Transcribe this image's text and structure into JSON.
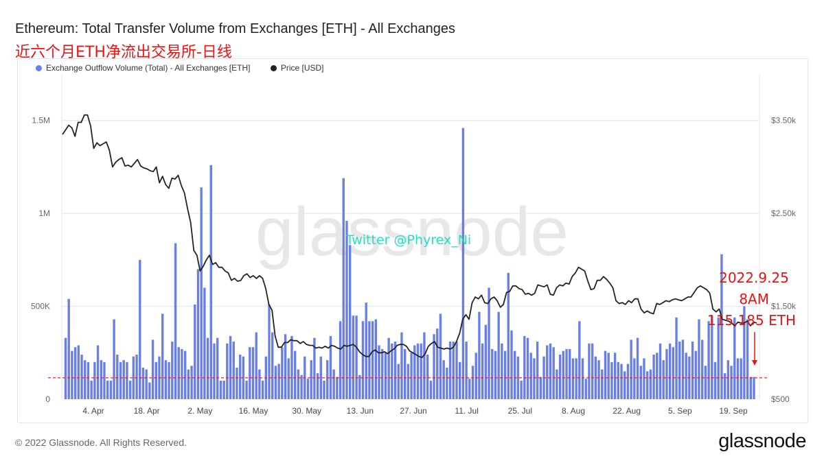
{
  "header": {
    "title": "Ethereum: Total Transfer Volume from Exchanges [ETH] - All Exchanges",
    "subtitle": "近六个月ETH净流出交易所-日线"
  },
  "footer": {
    "copyright": "© 2022 Glassnode. All Rights Reserved.",
    "logo": "glassnode"
  },
  "watermark": {
    "brand": "glassnode",
    "credit": "Twitter @Phyrex_Ni"
  },
  "annotation": {
    "lines": [
      "2022.9.25",
      "8AM",
      "115,185 ETH"
    ],
    "color": "#ee1111"
  },
  "chart_data": {
    "type": "bar",
    "grid": true,
    "legend_position": "top-left",
    "x_ticks": [
      "4. Apr",
      "18. Apr",
      "2. May",
      "16. May",
      "30. May",
      "13. Jun",
      "27. Jun",
      "11. Jul",
      "25. Jul",
      "8. Aug",
      "22. Aug",
      "5. Sep",
      "19. Sep"
    ],
    "y_left": {
      "ticks": [
        "0",
        "500K",
        "1M",
        "1.5M"
      ],
      "lim": [
        0,
        1750000
      ]
    },
    "y_right": {
      "ticks": [
        "$500",
        "$1.50k",
        "$2.50k",
        "$3.50k"
      ],
      "lim": [
        500,
        4000
      ]
    },
    "reference_line": {
      "value": 115185,
      "color": "#ee1111",
      "style": "dashed"
    },
    "series": [
      {
        "name": "Exchange Outflow Volume (Total) - All Exchanges [ETH]",
        "type": "bar",
        "axis": "left",
        "color": "#6a7fe3",
        "values": [
          330000,
          540000,
          260000,
          280000,
          290000,
          240000,
          210000,
          200000,
          100000,
          200000,
          290000,
          210000,
          200000,
          100000,
          100000,
          430000,
          240000,
          200000,
          210000,
          200000,
          100000,
          230000,
          240000,
          750000,
          170000,
          160000,
          90000,
          320000,
          200000,
          230000,
          460000,
          210000,
          200000,
          310000,
          840000,
          280000,
          270000,
          260000,
          160000,
          180000,
          510000,
          700000,
          1140000,
          600000,
          330000,
          1260000,
          300000,
          330000,
          100000,
          100000,
          300000,
          340000,
          310000,
          170000,
          240000,
          230000,
          100000,
          280000,
          280000,
          360000,
          160000,
          100000,
          230000,
          510000,
          360000,
          180000,
          190000,
          280000,
          350000,
          220000,
          340000,
          260000,
          160000,
          130000,
          230000,
          110000,
          210000,
          330000,
          140000,
          230000,
          100000,
          210000,
          340000,
          160000,
          120000,
          420000,
          1190000,
          960000,
          830000,
          450000,
          450000,
          130000,
          420000,
          520000,
          420000,
          420000,
          430000,
          290000,
          270000,
          250000,
          330000,
          300000,
          310000,
          190000,
          360000,
          270000,
          190000,
          250000,
          290000,
          300000,
          300000,
          360000,
          240000,
          100000,
          350000,
          380000,
          460000,
          210000,
          170000,
          310000,
          310000,
          310000,
          200000,
          1460000,
          310000,
          110000,
          180000,
          250000,
          470000,
          300000,
          400000,
          600000,
          270000,
          260000,
          470000,
          300000,
          260000,
          680000,
          370000,
          260000,
          230000,
          100000,
          340000,
          330000,
          250000,
          220000,
          310000,
          120000,
          230000,
          290000,
          300000,
          280000,
          160000,
          240000,
          260000,
          270000,
          270000,
          220000,
          220000,
          420000,
          220000,
          110000,
          300000,
          300000,
          230000,
          210000,
          160000,
          260000,
          250000,
          200000,
          250000,
          200000,
          190000,
          150000,
          190000,
          320000,
          220000,
          330000,
          180000,
          220000,
          150000,
          160000,
          240000,
          250000,
          300000,
          210000,
          270000,
          300000,
          280000,
          440000,
          310000,
          320000,
          250000,
          230000,
          310000,
          260000,
          430000,
          320000,
          180000,
          420000,
          450000,
          200000,
          440000,
          780000,
          140000,
          210000,
          180000,
          440000,
          220000,
          220000,
          500000,
          430000,
          120000,
          120000
        ]
      },
      {
        "name": "Price [USD]",
        "type": "line",
        "axis": "right",
        "color": "#222222",
        "values": [
          3350,
          3400,
          3450,
          3420,
          3330,
          3480,
          3480,
          3560,
          3560,
          3440,
          3200,
          3260,
          3230,
          3250,
          3270,
          3180,
          3000,
          3050,
          3080,
          3100,
          3010,
          3020,
          3000,
          3040,
          3080,
          3010,
          2990,
          2980,
          2960,
          2950,
          3000,
          2830,
          2900,
          2810,
          2770,
          2880,
          2870,
          2910,
          2800,
          2720,
          2550,
          2400,
          2100,
          2050,
          1880,
          1930,
          2000,
          2050,
          1950,
          1970,
          1920,
          1920,
          1880,
          1860,
          1780,
          1800,
          1770,
          1780,
          1830,
          1850,
          1810,
          1830,
          1800,
          1830,
          1800,
          1690,
          1520,
          1460,
          1180,
          1060,
          1060,
          1110,
          1110,
          1140,
          1130,
          1130,
          1100,
          1120,
          1090,
          1080,
          1080,
          1050,
          1060,
          1050,
          1070,
          1050,
          1080,
          1070,
          1050,
          1040,
          1080,
          1070,
          1080,
          1090,
          1060,
          1010,
          980,
          960,
          960,
          1010,
          1030,
          1000,
          1000,
          1010,
          990,
          1020,
          1040,
          1080,
          1090,
          1090,
          1070,
          1020,
          1000,
          980,
          960,
          950,
          990,
          1070,
          1100,
          1120,
          1060,
          1050,
          1040,
          1050,
          1040,
          1060,
          1120,
          1210,
          1360,
          1410,
          1360,
          1540,
          1600,
          1580,
          1620,
          1540,
          1530,
          1580,
          1600,
          1560,
          1490,
          1520,
          1650,
          1660,
          1720,
          1720,
          1690,
          1680,
          1630,
          1640,
          1620,
          1640,
          1730,
          1720,
          1710,
          1730,
          1630,
          1620,
          1700,
          1730,
          1720,
          1750,
          1740,
          1820,
          1860,
          1920,
          1900,
          1880,
          1770,
          1680,
          1690,
          1780,
          1780,
          1820,
          1790,
          1750,
          1700,
          1560,
          1530,
          1540,
          1520,
          1560,
          1540,
          1580,
          1580,
          1470,
          1430,
          1450,
          1430,
          1420,
          1530,
          1520,
          1540,
          1560,
          1550,
          1570,
          1580,
          1570,
          1560,
          1580,
          1600,
          1600,
          1650,
          1700,
          1720,
          1700,
          1680,
          1640,
          1470,
          1440,
          1470,
          1360,
          1350,
          1340,
          1320,
          1290,
          1330,
          1320,
          1320,
          1340,
          1290,
          1330,
          1320
        ]
      }
    ]
  }
}
